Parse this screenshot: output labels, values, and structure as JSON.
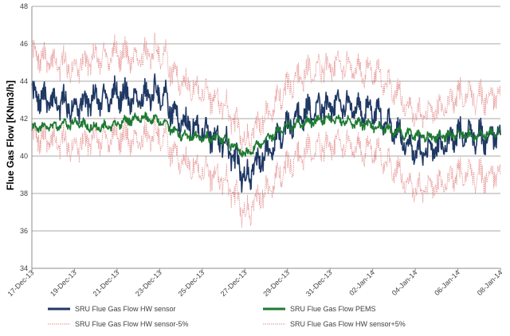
{
  "chart_data": {
    "type": "line",
    "title": "",
    "xlabel": "",
    "ylabel": "Flue Gas Flow [KNm3/h]",
    "ylim": [
      34,
      48
    ],
    "yticks": [
      34,
      36,
      38,
      40,
      42,
      44,
      46,
      48
    ],
    "xlim": [
      "2013-12-17",
      "2014-01-08"
    ],
    "xtick_labels": [
      "17-Dec-13",
      "19-Dec-13",
      "21-Dec-13",
      "23-Dec-13",
      "25-Dec-13",
      "27-Dec-13",
      "29-Dec-13",
      "31-Dec-13",
      "02-Jan-14",
      "04-Jan-14",
      "06-Jan-14",
      "08-Jan-14"
    ],
    "grid": "horizontal",
    "legend_position": "bottom",
    "series": [
      {
        "name": "SRU Flue Gas Flow HW sensor",
        "color": "#1f3864",
        "style": "solid",
        "x": [
          "2013-12-17",
          "2013-12-18",
          "2013-12-19",
          "2013-12-20",
          "2013-12-21",
          "2013-12-22",
          "2013-12-23",
          "2013-12-24",
          "2013-12-25",
          "2013-12-26",
          "2013-12-27",
          "2013-12-28",
          "2013-12-29",
          "2013-12-30",
          "2013-12-31",
          "2014-01-01",
          "2014-01-02",
          "2014-01-03",
          "2014-01-04",
          "2014-01-05",
          "2014-01-06",
          "2014-01-07",
          "2014-01-08"
        ],
        "values": [
          43.2,
          42.9,
          42.6,
          43.0,
          43.3,
          43.1,
          43.4,
          41.8,
          41.4,
          40.8,
          38.8,
          40.2,
          41.6,
          42.5,
          42.8,
          42.6,
          42.4,
          41.5,
          40.2,
          40.4,
          41.2,
          41.0,
          41.2
        ],
        "amplitude": 1.0
      },
      {
        "name": "SRU Flue Gas Flow PEMS",
        "color": "#1e7a32",
        "style": "solid",
        "x": [
          "2013-12-17",
          "2013-12-18",
          "2013-12-19",
          "2013-12-20",
          "2013-12-21",
          "2013-12-22",
          "2013-12-23",
          "2013-12-24",
          "2013-12-25",
          "2013-12-26",
          "2013-12-27",
          "2013-12-28",
          "2013-12-29",
          "2013-12-30",
          "2013-12-31",
          "2014-01-01",
          "2014-01-02",
          "2014-01-03",
          "2014-01-04",
          "2014-01-05",
          "2014-01-06",
          "2014-01-07",
          "2014-01-08"
        ],
        "values": [
          41.5,
          41.6,
          41.8,
          41.5,
          41.7,
          42.1,
          41.9,
          41.1,
          41.0,
          40.9,
          40.1,
          40.9,
          41.6,
          41.8,
          42.0,
          41.8,
          41.6,
          41.3,
          41.1,
          41.0,
          41.2,
          41.1,
          41.3
        ],
        "amplitude": 0.35
      },
      {
        "name": "SRU Flue Gas Flow HW sensor-5%",
        "color": "#e69090",
        "style": "dotted",
        "x": [
          "2013-12-17",
          "2013-12-18",
          "2013-12-19",
          "2013-12-20",
          "2013-12-21",
          "2013-12-22",
          "2013-12-23",
          "2013-12-24",
          "2013-12-25",
          "2013-12-26",
          "2013-12-27",
          "2013-12-28",
          "2013-12-29",
          "2013-12-30",
          "2013-12-31",
          "2014-01-01",
          "2014-01-02",
          "2014-01-03",
          "2014-01-04",
          "2014-01-05",
          "2014-01-06",
          "2014-01-07",
          "2014-01-08"
        ],
        "values": [
          41.0,
          40.8,
          40.5,
          40.9,
          41.1,
          40.9,
          41.2,
          39.7,
          39.3,
          38.8,
          36.9,
          38.2,
          39.5,
          40.4,
          40.7,
          40.5,
          40.3,
          39.4,
          38.2,
          38.4,
          39.1,
          38.9,
          39.1
        ],
        "amplitude": 1.0
      },
      {
        "name": "SRU Flue Gas Flow HW sensor+5%",
        "color": "#e69090",
        "style": "dotted",
        "x": [
          "2013-12-17",
          "2013-12-18",
          "2013-12-19",
          "2013-12-20",
          "2013-12-21",
          "2013-12-22",
          "2013-12-23",
          "2013-12-24",
          "2013-12-25",
          "2013-12-26",
          "2013-12-27",
          "2013-12-28",
          "2013-12-29",
          "2013-12-30",
          "2013-12-31",
          "2014-01-01",
          "2014-01-02",
          "2014-01-03",
          "2014-01-04",
          "2014-01-05",
          "2014-01-06",
          "2014-01-07",
          "2014-01-08"
        ],
        "values": [
          45.4,
          45.0,
          44.7,
          45.2,
          45.5,
          45.3,
          45.6,
          43.9,
          43.5,
          42.8,
          40.7,
          42.2,
          43.7,
          44.6,
          44.9,
          44.7,
          44.5,
          43.6,
          42.2,
          42.4,
          43.3,
          43.1,
          43.3
        ],
        "amplitude": 1.0
      }
    ]
  }
}
